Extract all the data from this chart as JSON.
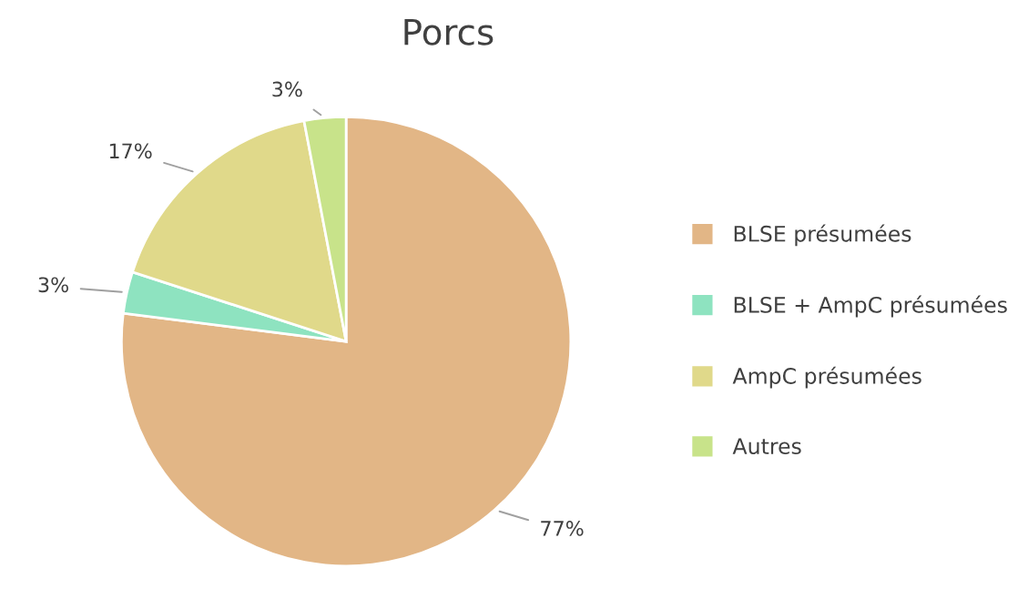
{
  "chart_data": {
    "type": "pie",
    "title": "Porcs",
    "categories": [
      "BLSE présumées",
      "BLSE + AmpC présumées",
      "AmpC présumées",
      "Autres"
    ],
    "values": [
      77,
      3,
      17,
      3
    ],
    "value_labels": [
      "77%",
      "3%",
      "17%",
      "3%"
    ],
    "colors": [
      "#e2b686",
      "#8ee3c0",
      "#e0d98a",
      "#c8e38a"
    ],
    "legend": "right"
  }
}
